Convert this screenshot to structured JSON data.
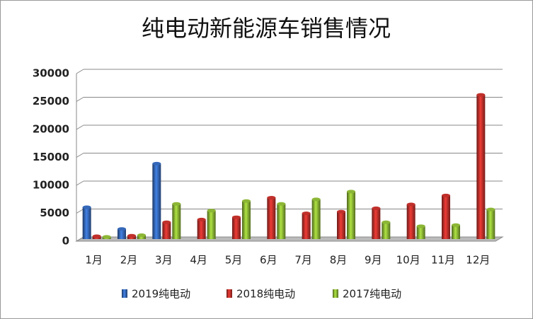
{
  "chart_data": {
    "type": "bar3d",
    "title": "纯电动新能源车销售情况",
    "categories": [
      "1月",
      "2月",
      "3月",
      "4月",
      "5月",
      "6月",
      "7月",
      "8月",
      "9月",
      "10月",
      "11月",
      "12月"
    ],
    "series": [
      {
        "name": "2019纯电动",
        "color": "#3568b8",
        "values": [
          5700,
          1800,
          13500,
          null,
          null,
          null,
          null,
          null,
          null,
          null,
          null,
          null
        ]
      },
      {
        "name": "2018纯电动",
        "color": "#c0302b",
        "values": [
          500,
          600,
          3000,
          3500,
          3900,
          7400,
          4600,
          4900,
          5500,
          6200,
          7800,
          25800
        ]
      },
      {
        "name": "2017纯电动",
        "color": "#8cb635",
        "values": [
          400,
          700,
          6300,
          5100,
          6800,
          6300,
          7100,
          8500,
          3000,
          2300,
          2500,
          5300
        ]
      }
    ],
    "ylim": [
      0,
      30000
    ],
    "yticks": [
      0,
      5000,
      10000,
      15000,
      20000,
      25000,
      30000
    ],
    "grid": true
  }
}
